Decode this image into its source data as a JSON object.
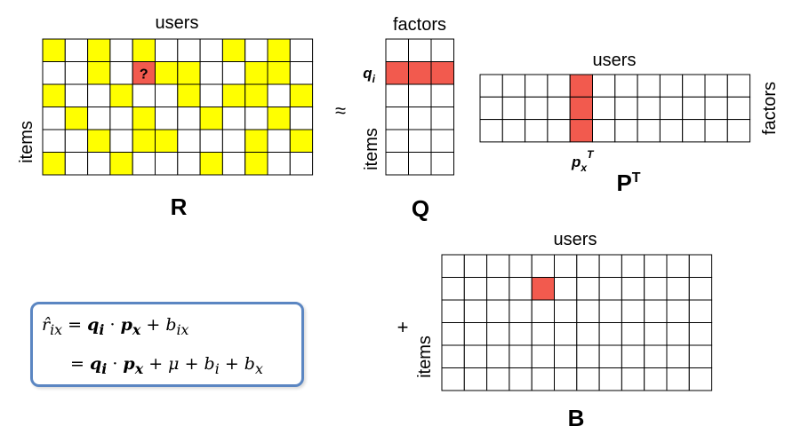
{
  "colors": {
    "observed": "#ffff00",
    "highlight": "#f25a4e",
    "grid_line": "#000000",
    "box_border": "#5b86c2"
  },
  "matrix_R": {
    "title": "R",
    "col_label": "users",
    "row_label": "items",
    "unknown_mark": "?",
    "rows": 6,
    "cols": 12,
    "cells": [
      [
        1,
        0,
        1,
        0,
        1,
        0,
        0,
        0,
        1,
        0,
        1,
        0
      ],
      [
        0,
        0,
        1,
        0,
        0,
        1,
        1,
        0,
        0,
        1,
        1,
        0
      ],
      [
        1,
        0,
        0,
        1,
        0,
        0,
        1,
        0,
        1,
        1,
        0,
        1
      ],
      [
        0,
        1,
        0,
        0,
        1,
        0,
        0,
        1,
        0,
        0,
        1,
        0
      ],
      [
        0,
        0,
        1,
        0,
        1,
        1,
        0,
        0,
        0,
        1,
        0,
        1
      ],
      [
        1,
        0,
        0,
        1,
        0,
        0,
        0,
        1,
        0,
        1,
        0,
        0
      ]
    ],
    "unknown_cell": [
      1,
      4
    ]
  },
  "approx_sign": "≈",
  "matrix_Q": {
    "title": "Q",
    "col_label": "factors",
    "row_label": "items",
    "row_vector_label": "q",
    "row_vector_sub": "i",
    "rows": 6,
    "cols": 3,
    "highlight_row": 1
  },
  "matrix_PT": {
    "title": "P",
    "title_sup": "T",
    "col_label": "users",
    "row_label": "factors",
    "col_vector_label": "p",
    "col_vector_sub": "x",
    "col_vector_sup": "T",
    "rows": 3,
    "cols": 12,
    "highlight_col": 4
  },
  "plus_sign": "+",
  "matrix_B": {
    "title": "B",
    "col_label": "users",
    "row_label": "items",
    "rows": 6,
    "cols": 12,
    "highlight_cell": [
      1,
      4
    ]
  },
  "formula": {
    "line1": {
      "lhs": "r",
      "lhs_sub": "ix",
      "eq": "=",
      "q": "q",
      "q_sub": "i",
      "dot": "·",
      "p": "p",
      "p_sub": "x",
      "plus": "+",
      "b": "b",
      "b_sub": "ix"
    },
    "line2": {
      "eq": "=",
      "q": "q",
      "q_sub": "i",
      "dot": "·",
      "p": "p",
      "p_sub": "x",
      "plus1": "+",
      "mu": "μ",
      "plus2": "+",
      "bi": "b",
      "bi_sub": "i",
      "plus3": "+",
      "bx": "b",
      "bx_sub": "x"
    }
  }
}
